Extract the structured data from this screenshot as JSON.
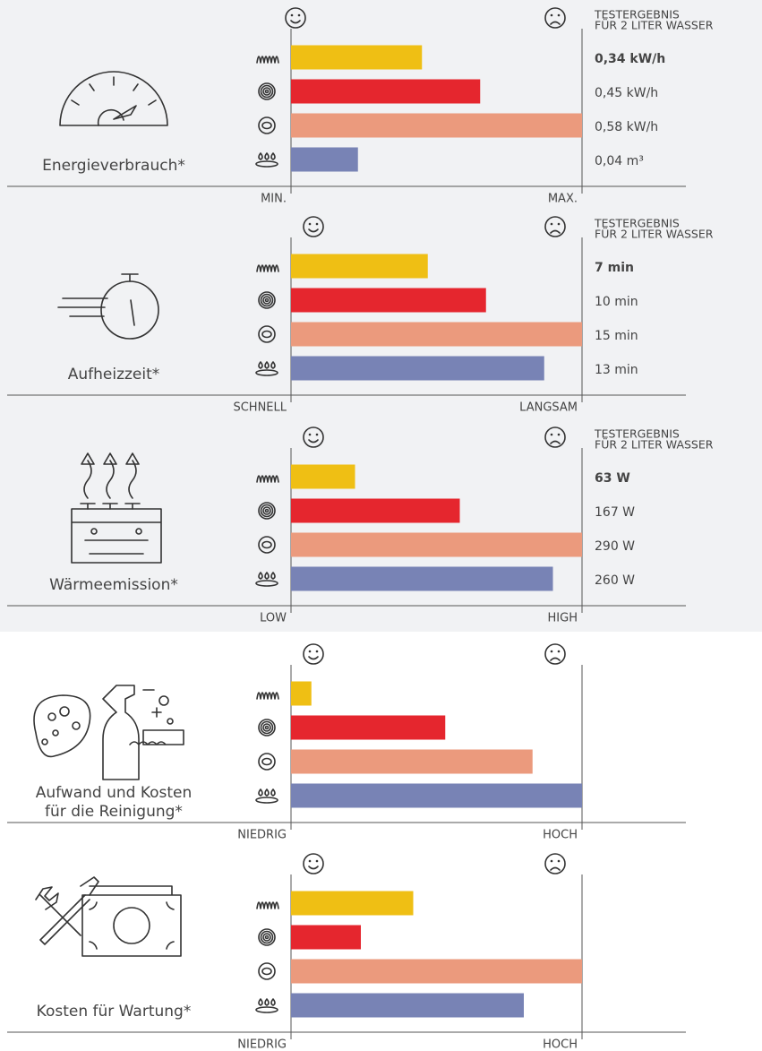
{
  "chart_data": [
    {
      "type": "bar",
      "title": [
        "Energieverbrauch*"
      ],
      "values": [
        45,
        65,
        100,
        23
      ],
      "colors": [
        "#efbf14",
        "#e5262e",
        "#eb9a7d",
        "#7883b5"
      ],
      "xlim": [
        0,
        100
      ],
      "xticks": [
        {
          "value": 0,
          "label": "MIN."
        },
        {
          "value": 100,
          "label": "MAX."
        }
      ],
      "result_title": [
        "TESTERGEBNIS",
        "FÜR 2 LITER WASSER"
      ],
      "results": [
        "0,34 kW/h",
        "0,45 kW/h",
        "0,58 kW/h",
        "0,04 m³"
      ]
    },
    {
      "type": "bar",
      "title": [
        "Aufheizzeit*"
      ],
      "values": [
        47,
        67,
        100,
        87
      ],
      "colors": [
        "#efbf14",
        "#e5262e",
        "#eb9a7d",
        "#7883b5"
      ],
      "xlim": [
        0,
        100
      ],
      "xticks": [
        {
          "value": 0,
          "label": "SCHNELL"
        },
        {
          "value": 100,
          "label": "LANGSAM"
        }
      ],
      "result_title": [
        "TESTERGEBNIS",
        "FÜR 2 LITER WASSER"
      ],
      "results": [
        "7 min",
        "10 min",
        "15 min",
        "13 min"
      ]
    },
    {
      "type": "bar",
      "title": [
        "Wärmeemission*"
      ],
      "values": [
        22,
        58,
        100,
        90
      ],
      "colors": [
        "#efbf14",
        "#e5262e",
        "#eb9a7d",
        "#7883b5"
      ],
      "xlim": [
        0,
        100
      ],
      "xticks": [
        {
          "value": 0,
          "label": "LOW"
        },
        {
          "value": 100,
          "label": "HIGH"
        }
      ],
      "result_title": [
        "TESTERGEBNIS",
        "FÜR 2 LITER WASSER"
      ],
      "results": [
        "63 W",
        "167 W",
        "290 W",
        "260 W"
      ]
    },
    {
      "type": "bar",
      "title": [
        "Aufwand und Kosten",
        "für die Reinigung*"
      ],
      "values": [
        7,
        53,
        83,
        100
      ],
      "colors": [
        "#efbf14",
        "#e5262e",
        "#eb9a7d",
        "#7883b5"
      ],
      "xlim": [
        0,
        100
      ],
      "xticks": [
        {
          "value": 0,
          "label": "NIEDRIG"
        },
        {
          "value": 100,
          "label": "HOCH"
        }
      ]
    },
    {
      "type": "bar",
      "title": [
        "Kosten für Wartung*"
      ],
      "values": [
        42,
        24,
        100,
        80
      ],
      "colors": [
        "#efbf14",
        "#e5262e",
        "#eb9a7d",
        "#7883b5"
      ],
      "xlim": [
        0,
        100
      ],
      "xticks": [
        {
          "value": 0,
          "label": "NIEDRIG"
        },
        {
          "value": 100,
          "label": "HOCH"
        }
      ]
    }
  ]
}
